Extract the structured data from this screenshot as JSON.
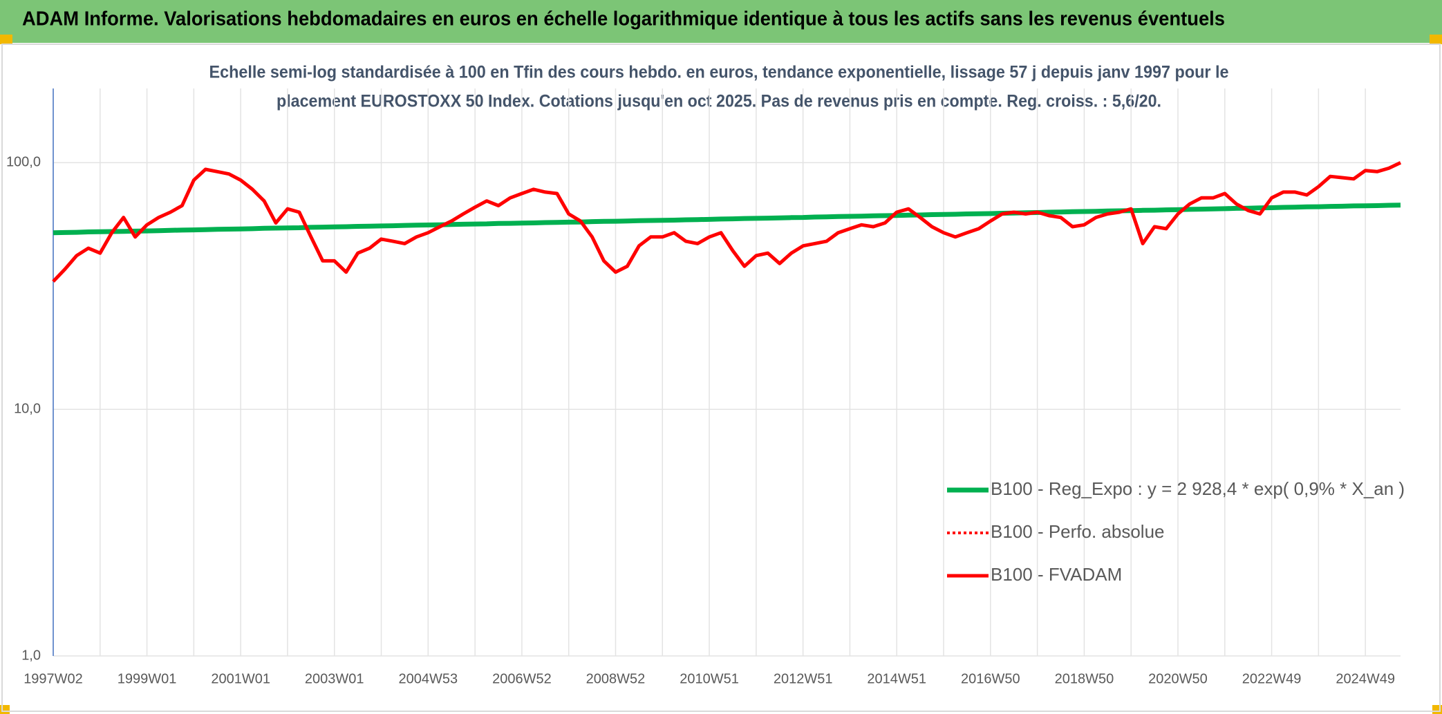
{
  "chart_data": {
    "type": "line",
    "title": "ADAM Informe. Valorisations hebdomadaires en euros en échelle logarithmique identique à tous les actifs sans les revenus éventuels",
    "subtitle": [
      "Echelle semi-log standardisée à 100 en Tfin des cours hebdo. en euros, tendance exponentielle, lissage 57 j depuis janv 1997 pour le",
      "placement EUROSTOXX 50 Index. Cotations jusqu'en oct 2025. Pas de revenus pris en compte. Reg. croiss. : 5,6/20."
    ],
    "log_scale": true,
    "grid": true,
    "ylim": [
      1,
      200
    ],
    "yticks": [
      {
        "value": 1,
        "label": "1,0"
      },
      {
        "value": 10,
        "label": "10,0"
      },
      {
        "value": 100,
        "label": "100,0"
      }
    ],
    "categories": [
      "1997W02",
      null,
      null,
      null,
      null,
      null,
      null,
      null,
      "1999W01",
      null,
      null,
      null,
      null,
      null,
      null,
      null,
      "2001W01",
      null,
      null,
      null,
      null,
      null,
      null,
      null,
      "2003W01",
      null,
      null,
      null,
      null,
      null,
      null,
      null,
      "2004W53",
      null,
      null,
      null,
      null,
      null,
      null,
      null,
      "2006W52",
      null,
      null,
      null,
      null,
      null,
      null,
      null,
      "2008W52",
      null,
      null,
      null,
      null,
      null,
      null,
      null,
      "2010W51",
      null,
      null,
      null,
      null,
      null,
      null,
      null,
      "2012W51",
      null,
      null,
      null,
      null,
      null,
      null,
      null,
      "2014W51",
      null,
      null,
      null,
      null,
      null,
      null,
      null,
      "2016W50",
      null,
      null,
      null,
      null,
      null,
      null,
      null,
      "2018W50",
      null,
      null,
      null,
      null,
      null,
      null,
      null,
      "2020W50",
      null,
      null,
      null,
      null,
      null,
      null,
      null,
      "2022W49",
      null,
      null,
      null,
      null,
      null,
      null,
      null,
      "2024W49",
      null,
      null,
      null
    ],
    "series": [
      {
        "name": "B100 - Reg_Expo : y = 2 928,4 * exp( 0,9% *  X_an )",
        "color": "#00b050",
        "style": "solid",
        "values": [
          52.0,
          52.1,
          52.2,
          52.4,
          52.5,
          52.6,
          52.7,
          52.8,
          52.9,
          53.0,
          53.2,
          53.3,
          53.4,
          53.5,
          53.7,
          53.8,
          53.9,
          54.0,
          54.2,
          54.3,
          54.4,
          54.5,
          54.7,
          54.8,
          54.9,
          55.0,
          55.2,
          55.3,
          55.4,
          55.5,
          55.7,
          55.8,
          55.9,
          56.0,
          56.2,
          56.3,
          56.4,
          56.5,
          56.7,
          56.8,
          56.9,
          57.0,
          57.2,
          57.3,
          57.4,
          57.5,
          57.7,
          57.8,
          57.9,
          58.0,
          58.2,
          58.3,
          58.4,
          58.5,
          58.7,
          58.8,
          58.9,
          59.1,
          59.2,
          59.4,
          59.5,
          59.6,
          59.7,
          59.9,
          60.0,
          60.2,
          60.3,
          60.5,
          60.6,
          60.7,
          60.9,
          61.0,
          61.1,
          61.3,
          61.4,
          61.6,
          61.7,
          61.8,
          62.0,
          62.1,
          62.2,
          62.4,
          62.5,
          62.7,
          62.8,
          63.0,
          63.1,
          63.3,
          63.4,
          63.5,
          63.7,
          63.8,
          63.9,
          64.1,
          64.2,
          64.4,
          64.5,
          64.7,
          64.8,
          65.0,
          65.1,
          65.3,
          65.4,
          65.6,
          65.7,
          65.9,
          66.0,
          66.2,
          66.3,
          66.5,
          66.6,
          66.8,
          66.9,
          67.0,
          67.2,
          67.3
        ]
      },
      {
        "name": "B100 - Perfo. absolue",
        "color": "#ff0000",
        "style": "dotted",
        "values": [
          33,
          37,
          42,
          45,
          43,
          52,
          60,
          50,
          56,
          60,
          63,
          67,
          85,
          94,
          92,
          90,
          85,
          78,
          70,
          57,
          65,
          63,
          50,
          40,
          40,
          36,
          43,
          45,
          49,
          48,
          47,
          50,
          52,
          55,
          58,
          62,
          66,
          70,
          67,
          72,
          75,
          78,
          76,
          75,
          62,
          58,
          50,
          40,
          36,
          38,
          46,
          50,
          50,
          52,
          48,
          47,
          50,
          52,
          44,
          38,
          42,
          43,
          39,
          43,
          46,
          47,
          48,
          52,
          54,
          56,
          55,
          57,
          63,
          65,
          60,
          55,
          52,
          50,
          52,
          54,
          58,
          62,
          63,
          62,
          63,
          61,
          60,
          55,
          56,
          60,
          62,
          63,
          65,
          47,
          55,
          54,
          62,
          68,
          72,
          72,
          75,
          68,
          64,
          62,
          72,
          76,
          76,
          74,
          80,
          88,
          87,
          86,
          93,
          92,
          95,
          100
        ]
      },
      {
        "name": "B100 - FVADAM",
        "color": "#ff0000",
        "style": "solid",
        "values": [
          33,
          37,
          42,
          45,
          43,
          52,
          60,
          50,
          56,
          60,
          63,
          67,
          85,
          94,
          92,
          90,
          85,
          78,
          70,
          57,
          65,
          63,
          50,
          40,
          40,
          36,
          43,
          45,
          49,
          48,
          47,
          50,
          52,
          55,
          58,
          62,
          66,
          70,
          67,
          72,
          75,
          78,
          76,
          75,
          62,
          58,
          50,
          40,
          36,
          38,
          46,
          50,
          50,
          52,
          48,
          47,
          50,
          52,
          44,
          38,
          42,
          43,
          39,
          43,
          46,
          47,
          48,
          52,
          54,
          56,
          55,
          57,
          63,
          65,
          60,
          55,
          52,
          50,
          52,
          54,
          58,
          62,
          63,
          62,
          63,
          61,
          60,
          55,
          56,
          60,
          62,
          63,
          65,
          47,
          55,
          54,
          62,
          68,
          72,
          72,
          75,
          68,
          64,
          62,
          72,
          76,
          76,
          74,
          80,
          88,
          87,
          86,
          93,
          92,
          95,
          100
        ]
      }
    ]
  }
}
